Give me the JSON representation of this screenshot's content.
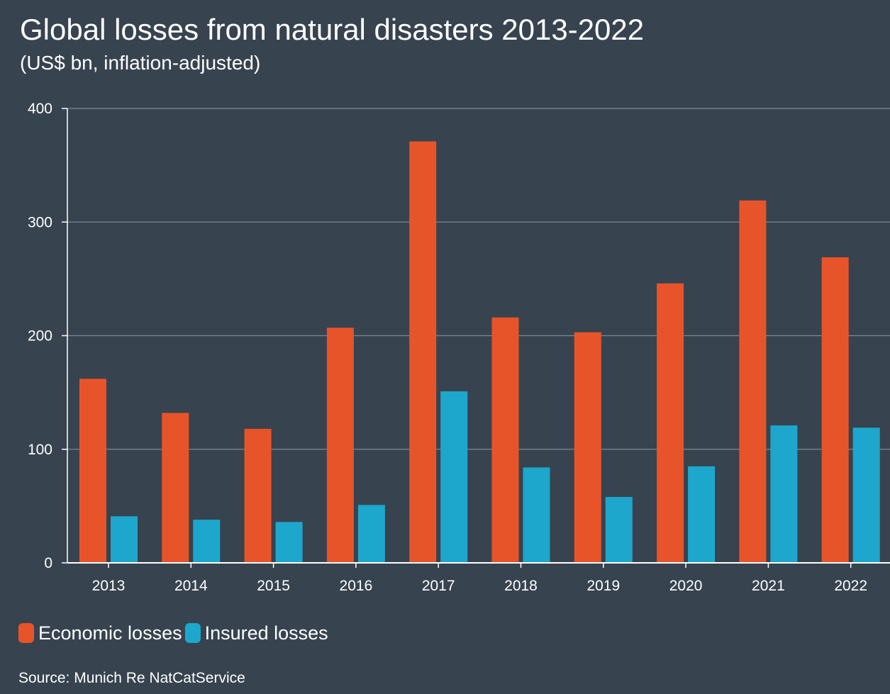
{
  "header": {
    "title": "Global losses from natural disasters 2013-2022",
    "subtitle": "(US$ bn, inflation-adjusted)"
  },
  "source": "Source: Munich Re NatCatService",
  "colors": {
    "background": "#37434f",
    "economic": "#e8542a",
    "insured": "#1ea7cc",
    "grid": "#7d8791",
    "axis": "#ffffff"
  },
  "chart_data": {
    "type": "bar",
    "title": "Global losses from natural disasters 2013-2022",
    "subtitle": "(US$ bn, inflation-adjusted)",
    "xlabel": "",
    "ylabel": "",
    "categories": [
      "2013",
      "2014",
      "2015",
      "2016",
      "2017",
      "2018",
      "2019",
      "2020",
      "2021",
      "2022"
    ],
    "series": [
      {
        "name": "Economic losses",
        "color": "#e8542a",
        "values": [
          162,
          132,
          118,
          207,
          371,
          216,
          203,
          246,
          319,
          269
        ]
      },
      {
        "name": "Insured losses",
        "color": "#1ea7cc",
        "values": [
          41,
          38,
          36,
          51,
          151,
          84,
          58,
          85,
          121,
          119
        ]
      }
    ],
    "ylim": [
      0,
      400
    ],
    "yticks": [
      0,
      100,
      200,
      300,
      400
    ],
    "grid": true,
    "legend": "bottom-left"
  }
}
